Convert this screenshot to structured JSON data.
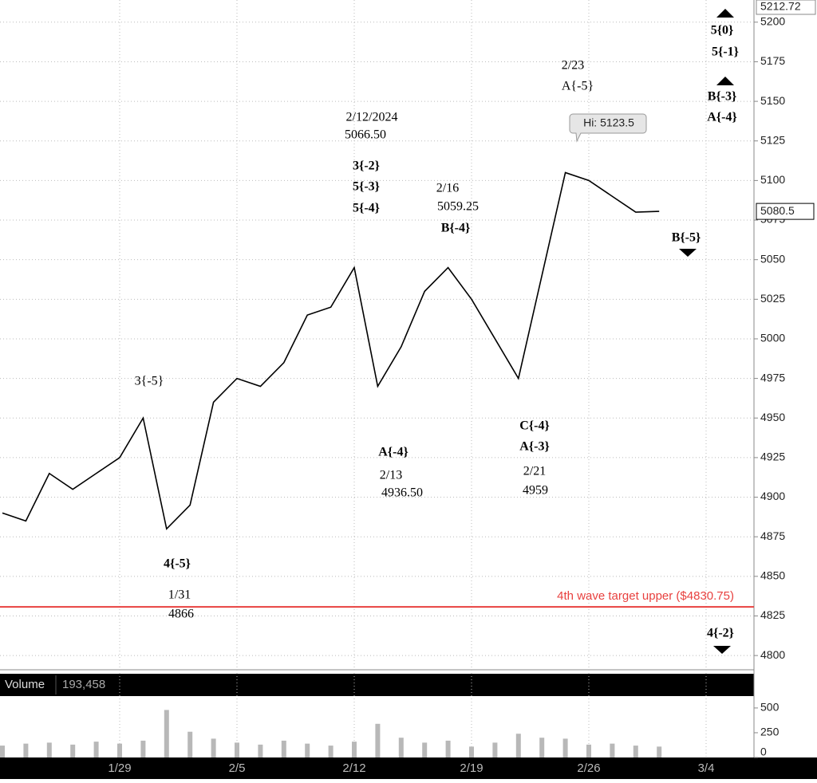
{
  "chart_data": [
    {
      "type": "line",
      "color": "#000000",
      "x": [
        null,
        null,
        null,
        null,
        null,
        "1/29",
        null,
        null,
        null,
        null,
        "2/5",
        null,
        null,
        null,
        null,
        "2/12",
        null,
        null,
        null,
        null,
        "2/19",
        null,
        null,
        null,
        null,
        "2/26",
        null,
        null,
        null,
        null,
        "3/4",
        null
      ],
      "values": [
        4890,
        4885,
        4915,
        4905,
        4915,
        4925,
        4950,
        4880,
        4895,
        4960,
        4975,
        4970,
        4985,
        5015,
        5020,
        5045,
        4970,
        4995,
        5030,
        5045,
        5025,
        5000,
        4975,
        5040,
        5105,
        5100,
        5090,
        5080,
        5080.5,
        null,
        null,
        null
      ],
      "ylim": [
        4791,
        5214
      ],
      "yticks": [
        4800,
        4825,
        4850,
        4875,
        4900,
        4925,
        4950,
        4975,
        5000,
        5025,
        5050,
        5075,
        5100,
        5125,
        5150,
        5175,
        5200
      ],
      "grid": true,
      "high_marker": 5212.72,
      "last_price": 5080.5,
      "hi_label": "Hi: 5123.5",
      "target_line": {
        "label": "4th wave target upper ($4830.75)",
        "value": 4830.75,
        "color": "#e8413f"
      },
      "annotations": [
        "3{-5}",
        "4{-5}",
        "1/31",
        "4866",
        "2/12/2024",
        "5066.50",
        "3{-2}",
        "5{-3}",
        "5{-4}",
        "2/16",
        "5059.25",
        "B{-4}",
        "A{-4}",
        "2/13",
        "4936.50",
        "C{-4}",
        "A{-3}",
        "2/21",
        "4959",
        "2/23",
        "A{-5}",
        "5{0}",
        "5{-1}",
        "B{-3}",
        "A{-4}",
        "B{-5}",
        "4{-2}"
      ]
    },
    {
      "type": "bar",
      "title": "Volume",
      "total": "193,458",
      "color": "#b8b8b8",
      "values": [
        120,
        140,
        150,
        130,
        160,
        140,
        170,
        480,
        260,
        190,
        150,
        130,
        170,
        140,
        120,
        160,
        340,
        200,
        150,
        170,
        110,
        150,
        240,
        200,
        190,
        130,
        140,
        120,
        110,
        null,
        null,
        null
      ],
      "ylim": [
        0,
        620
      ],
      "yticks": [
        0,
        250,
        500
      ]
    }
  ]
}
